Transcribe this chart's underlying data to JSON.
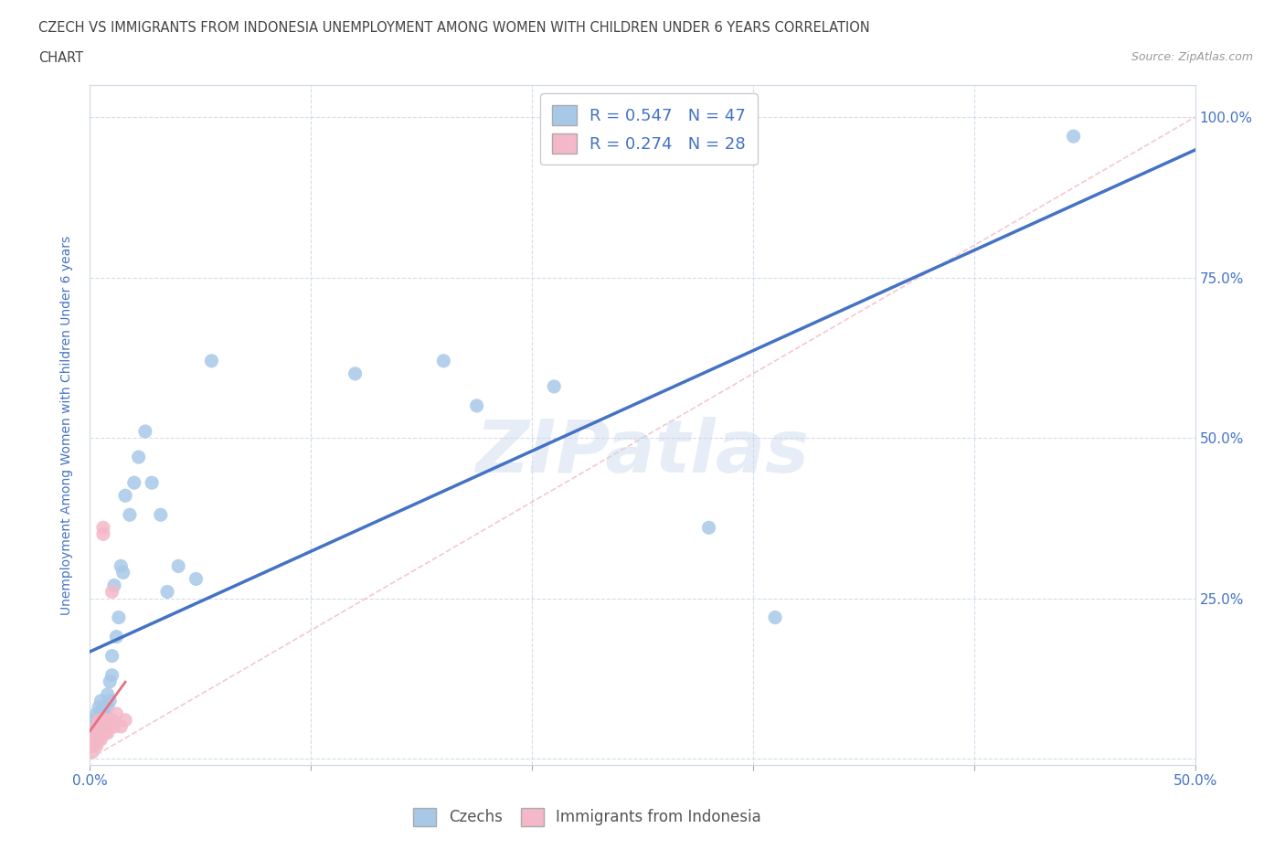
{
  "title_line1": "CZECH VS IMMIGRANTS FROM INDONESIA UNEMPLOYMENT AMONG WOMEN WITH CHILDREN UNDER 6 YEARS CORRELATION",
  "title_line2": "CHART",
  "source": "Source: ZipAtlas.com",
  "ylabel": "Unemployment Among Women with Children Under 6 years",
  "watermark": "ZIPatlas",
  "czech_color": "#a8c8e8",
  "indonesia_color": "#f4b8c8",
  "czech_line_color": "#4472c4",
  "indonesia_line_color": "#e87080",
  "diag_color": "#f0b0bc",
  "grid_color": "#d0d8e8",
  "R_czech": 0.547,
  "N_czech": 47,
  "R_indonesia": 0.274,
  "N_indonesia": 28,
  "legend_label_czech": "Czechs",
  "legend_label_indonesia": "Immigrants from Indonesia",
  "xlim": [
    0.0,
    0.5
  ],
  "ylim": [
    -0.01,
    1.05
  ],
  "xticks": [
    0.0,
    0.1,
    0.2,
    0.3,
    0.4,
    0.5
  ],
  "yticks": [
    0.0,
    0.25,
    0.5,
    0.75,
    1.0
  ],
  "czech_x": [
    0.001,
    0.001,
    0.002,
    0.002,
    0.002,
    0.003,
    0.003,
    0.003,
    0.004,
    0.004,
    0.004,
    0.005,
    0.005,
    0.005,
    0.006,
    0.006,
    0.007,
    0.007,
    0.008,
    0.008,
    0.009,
    0.009,
    0.01,
    0.01,
    0.011,
    0.012,
    0.013,
    0.014,
    0.015,
    0.016,
    0.018,
    0.02,
    0.022,
    0.025,
    0.028,
    0.032,
    0.035,
    0.04,
    0.048,
    0.055,
    0.12,
    0.16,
    0.175,
    0.21,
    0.28,
    0.31,
    0.445
  ],
  "czech_y": [
    0.02,
    0.03,
    0.04,
    0.05,
    0.06,
    0.03,
    0.05,
    0.07,
    0.04,
    0.06,
    0.08,
    0.05,
    0.07,
    0.09,
    0.06,
    0.08,
    0.05,
    0.07,
    0.08,
    0.1,
    0.09,
    0.12,
    0.13,
    0.16,
    0.27,
    0.19,
    0.22,
    0.3,
    0.29,
    0.41,
    0.38,
    0.43,
    0.47,
    0.51,
    0.43,
    0.38,
    0.26,
    0.3,
    0.28,
    0.62,
    0.6,
    0.62,
    0.55,
    0.58,
    0.36,
    0.22,
    0.97
  ],
  "indonesia_x": [
    0.0,
    0.001,
    0.001,
    0.001,
    0.002,
    0.002,
    0.002,
    0.003,
    0.003,
    0.003,
    0.004,
    0.004,
    0.004,
    0.005,
    0.005,
    0.006,
    0.006,
    0.007,
    0.007,
    0.008,
    0.008,
    0.009,
    0.01,
    0.01,
    0.011,
    0.012,
    0.014,
    0.016
  ],
  "indonesia_y": [
    0.02,
    0.01,
    0.02,
    0.03,
    0.02,
    0.03,
    0.04,
    0.02,
    0.03,
    0.05,
    0.03,
    0.04,
    0.06,
    0.03,
    0.05,
    0.35,
    0.36,
    0.04,
    0.06,
    0.04,
    0.06,
    0.05,
    0.26,
    0.06,
    0.05,
    0.07,
    0.05,
    0.06
  ]
}
